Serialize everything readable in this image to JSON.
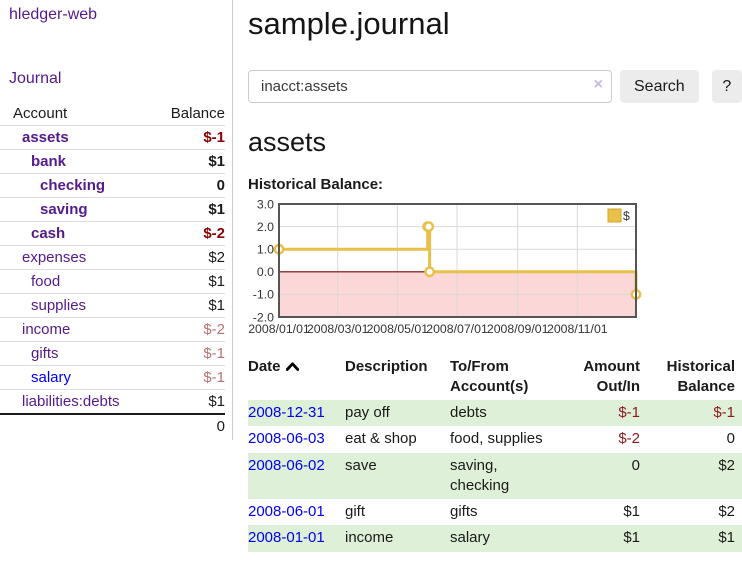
{
  "app": {
    "brand": "hledger-web",
    "nav": {
      "journal": "Journal"
    }
  },
  "sidebar": {
    "header": {
      "account": "Account",
      "balance": "Balance"
    },
    "rows": [
      {
        "name": "assets",
        "balance": "$-1"
      },
      {
        "name": "bank",
        "balance": "$1"
      },
      {
        "name": "checking",
        "balance": "0"
      },
      {
        "name": "saving",
        "balance": "$1"
      },
      {
        "name": "cash",
        "balance": "$-2"
      },
      {
        "name": "expenses",
        "balance": "$2"
      },
      {
        "name": "food",
        "balance": "$1"
      },
      {
        "name": "supplies",
        "balance": "$1"
      },
      {
        "name": "income",
        "balance": "$-2"
      },
      {
        "name": "gifts",
        "balance": "$-1"
      },
      {
        "name": "salary",
        "balance": "$-1"
      },
      {
        "name": "liabilities:debts",
        "balance": "$1"
      }
    ],
    "total": "0"
  },
  "main": {
    "title": "sample.journal",
    "search": {
      "value": "inacct:assets",
      "clear_icon": "×",
      "search_button": "Search",
      "help_button": "?"
    },
    "account_title": "assets",
    "chart_label": "Historical Balance:"
  },
  "chart_data": {
    "type": "line",
    "subtype": "step-after",
    "title": "Historical Balance",
    "series": [
      {
        "name": "$",
        "points": [
          [
            "2008-01-01",
            1.0
          ],
          [
            "2008-06-01",
            2.0
          ],
          [
            "2008-06-02",
            2.0
          ],
          [
            "2008-06-03",
            0.0
          ],
          [
            "2008-12-31",
            -1.0
          ]
        ]
      }
    ],
    "ylim": [
      -2.0,
      3.0
    ],
    "yticks": [
      3.0,
      2.0,
      1.0,
      0.0,
      -1.0,
      -2.0
    ],
    "xticks": [
      "2008/01/01",
      "2008/03/01",
      "2008/05/01",
      "2008/07/01",
      "2008/09/01",
      "2008/11/01"
    ],
    "legend": {
      "label": "$",
      "position": "top-right"
    },
    "grid": true,
    "colors": {
      "line": "#e8c04a",
      "negative_region": "#fbd7d7",
      "zero_line": "#7d0000",
      "grid": "#d9d9d9",
      "border": "#555555",
      "legend_border": "#d2a62c"
    }
  },
  "register": {
    "headers": {
      "date": "Date",
      "description": "Description",
      "accounts": "To/From Account(s)",
      "amount": "Amount Out/In",
      "balance": "Historical Balance"
    },
    "rows": [
      {
        "date": "2008-12-31",
        "description": "pay off",
        "accounts": "debts",
        "amount": "$-1",
        "balance": "$-1"
      },
      {
        "date": "2008-06-03",
        "description": "eat & shop",
        "accounts": "food, supplies",
        "amount": "$-2",
        "balance": "0"
      },
      {
        "date": "2008-06-02",
        "description": "save",
        "accounts": "saving,\nchecking",
        "amount": "0",
        "balance": "$2"
      },
      {
        "date": "2008-06-01",
        "description": "gift",
        "accounts": "gifts",
        "amount": "$1",
        "balance": "$2"
      },
      {
        "date": "2008-01-01",
        "description": "income",
        "accounts": "salary",
        "amount": "$1",
        "balance": "$1"
      }
    ]
  }
}
